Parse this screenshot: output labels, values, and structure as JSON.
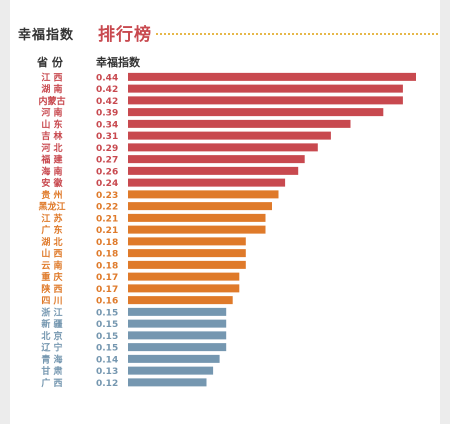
{
  "header": {
    "title_main": "幸福指数",
    "title_accent": "排行榜",
    "col_province": "省 份",
    "col_index": "幸福指数"
  },
  "colors": {
    "group1": "#c8494f",
    "group2": "#df7a2a",
    "group3": "#7597b0",
    "title_accent": "#c8494f",
    "dots": "#e6b84a"
  },
  "chart_data": {
    "type": "bar",
    "orientation": "horizontal",
    "title": "幸福指数 排行榜",
    "categories": [
      "江 西",
      "湖 南",
      "内蒙古",
      "河 南",
      "山 东",
      "吉 林",
      "河 北",
      "福 建",
      "海 南",
      "安 徽",
      "贵 州",
      "黑龙江",
      "江 苏",
      "广 东",
      "湖 北",
      "山 西",
      "云 南",
      "重 庆",
      "陕 西",
      "四 川",
      "浙 江",
      "新 疆",
      "北 京",
      "辽 宁",
      "青 海",
      "甘 肃",
      "广 西"
    ],
    "values": [
      0.44,
      0.42,
      0.42,
      0.39,
      0.34,
      0.31,
      0.29,
      0.27,
      0.26,
      0.24,
      0.23,
      0.22,
      0.21,
      0.21,
      0.18,
      0.18,
      0.18,
      0.17,
      0.17,
      0.16,
      0.15,
      0.15,
      0.15,
      0.15,
      0.14,
      0.13,
      0.12
    ],
    "value_labels": [
      "0.44",
      "0.42",
      "0.42",
      "0.39",
      "0.34",
      "0.31",
      "0.29",
      "0.27",
      "0.26",
      "0.24",
      "0.23",
      "0.22",
      "0.21",
      "0.21",
      "0.18",
      "0.18",
      "0.18",
      "0.17",
      "0.17",
      "0.16",
      "0.15",
      "0.15",
      "0.15",
      "0.15",
      "0.14",
      "0.13",
      "0.12"
    ],
    "color_groups": [
      1,
      1,
      1,
      1,
      1,
      1,
      1,
      1,
      1,
      1,
      2,
      2,
      2,
      2,
      2,
      2,
      2,
      2,
      2,
      2,
      3,
      3,
      3,
      3,
      3,
      3,
      3
    ],
    "xlim": [
      0,
      0.46
    ],
    "grid": false,
    "legend": "none"
  }
}
